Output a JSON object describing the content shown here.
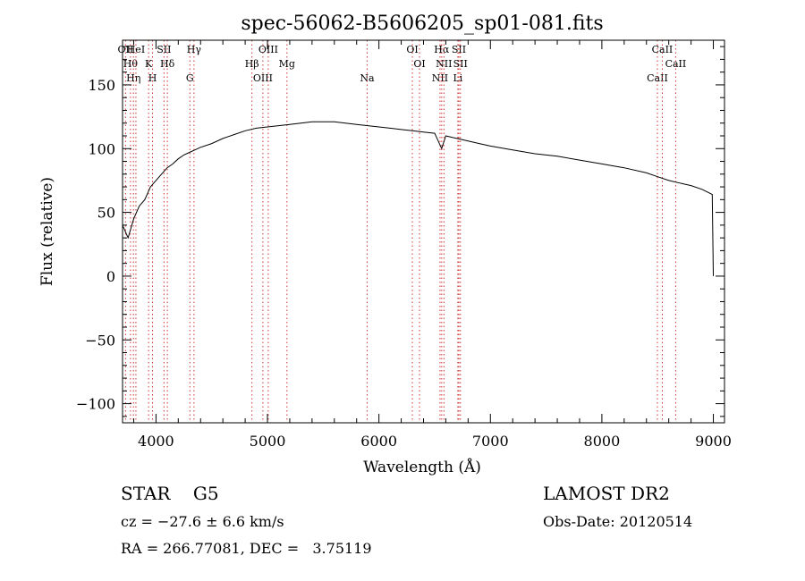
{
  "chart_data": {
    "type": "line",
    "title": "spec-56062-B5606205_sp01-081.fits",
    "xlabel": "Wavelength (Å)",
    "ylabel": "Flux (relative)",
    "xlim": [
      3700,
      9100
    ],
    "ylim": [
      -115,
      185
    ],
    "x_ticks": [
      4000,
      5000,
      6000,
      7000,
      8000,
      9000
    ],
    "x_tick_labels": [
      "4000",
      "5000",
      "6000",
      "7000",
      "8000",
      "9000"
    ],
    "y_ticks": [
      -100,
      -50,
      0,
      50,
      100,
      150
    ],
    "y_tick_labels": [
      "−100",
      "−50",
      "0",
      "50",
      "100",
      "150"
    ],
    "series": [
      {
        "color": "#000000",
        "x": [
          3700,
          3750,
          3800,
          3850,
          3900,
          3950,
          4000,
          4050,
          4100,
          4150,
          4200,
          4250,
          4300,
          4350,
          4400,
          4500,
          4600,
          4700,
          4800,
          4900,
          5000,
          5100,
          5200,
          5300,
          5400,
          5500,
          5600,
          5700,
          5800,
          5900,
          6000,
          6100,
          6200,
          6300,
          6400,
          6500,
          6563,
          6600,
          6700,
          6800,
          6900,
          7000,
          7200,
          7400,
          7600,
          7800,
          8000,
          8200,
          8400,
          8500,
          8600,
          8700,
          8800,
          8900,
          8990,
          9000
        ],
        "y": [
          40,
          30,
          45,
          55,
          60,
          70,
          75,
          80,
          85,
          88,
          92,
          95,
          97,
          99,
          101,
          104,
          108,
          111,
          114,
          116,
          117,
          118,
          119,
          120,
          121,
          121,
          121,
          120,
          119,
          118,
          117,
          116,
          115,
          114,
          113,
          112,
          100,
          110,
          108,
          106,
          104,
          102,
          99,
          96,
          94,
          91,
          88,
          85,
          81,
          78,
          75,
          73,
          71,
          68,
          64,
          0
        ]
      }
    ],
    "line_annotations": [
      {
        "x": 3727,
        "label": "OII"
      },
      {
        "x": 3771,
        "label": "Hθ"
      },
      {
        "x": 3798,
        "label": "Hη"
      },
      {
        "x": 3820,
        "label": "HeI"
      },
      {
        "x": 3934,
        "label": "K"
      },
      {
        "x": 3969,
        "label": "H"
      },
      {
        "x": 4072,
        "label": "SII"
      },
      {
        "x": 4102,
        "label": "Hδ"
      },
      {
        "x": 4304,
        "label": "G"
      },
      {
        "x": 4341,
        "label": "Hγ"
      },
      {
        "x": 4861,
        "label": "Hβ"
      },
      {
        "x": 4959,
        "label": "OIII"
      },
      {
        "x": 5007,
        "label": "OIII"
      },
      {
        "x": 5175,
        "label": "Mg"
      },
      {
        "x": 5894,
        "label": "Na"
      },
      {
        "x": 6300,
        "label": "OI"
      },
      {
        "x": 6364,
        "label": "OI"
      },
      {
        "x": 6548,
        "label": "NII"
      },
      {
        "x": 6563,
        "label": "Hα"
      },
      {
        "x": 6583,
        "label": "NII"
      },
      {
        "x": 6708,
        "label": "Li"
      },
      {
        "x": 6717,
        "label": "SII"
      },
      {
        "x": 6731,
        "label": "SII"
      },
      {
        "x": 8498,
        "label": "CaII"
      },
      {
        "x": 8542,
        "label": "CaII"
      },
      {
        "x": 8662,
        "label": "CaII"
      }
    ],
    "grid": false,
    "legend": "none"
  },
  "info": {
    "class_line": "STAR    G5",
    "cz_line": "cz = −27.6 ± 6.6 km/s",
    "radec_line": "RA = 266.77081, DEC =   3.75119",
    "survey": "LAMOST DR2",
    "obs_date": "Obs-Date: 20120514"
  }
}
